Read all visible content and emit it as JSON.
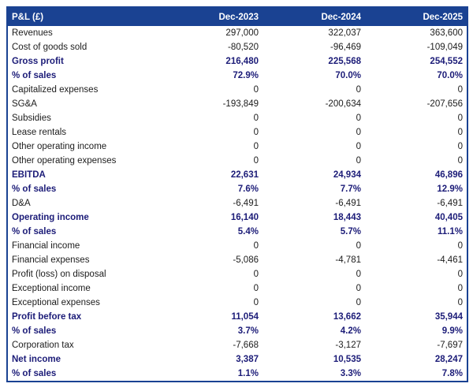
{
  "colors": {
    "header_bg": "#1a4292",
    "border": "#1a4292",
    "emphasis_text": "#1c1c78",
    "normal_text": "#1c1c1c",
    "row_bg": "#ffffff"
  },
  "table": {
    "title": "P&L (£)",
    "columns": [
      "Dec-2023",
      "Dec-2024",
      "Dec-2025"
    ],
    "rows": [
      {
        "label": "Revenues",
        "values": [
          "297,000",
          "322,037",
          "363,600"
        ],
        "emphasis": false
      },
      {
        "label": "Cost of goods sold",
        "values": [
          "-80,520",
          "-96,469",
          "-109,049"
        ],
        "emphasis": false
      },
      {
        "label": "Gross profit",
        "values": [
          "216,480",
          "225,568",
          "254,552"
        ],
        "emphasis": true
      },
      {
        "label": "% of sales",
        "values": [
          "72.9%",
          "70.0%",
          "70.0%"
        ],
        "emphasis": true
      },
      {
        "label": "Capitalized expenses",
        "values": [
          "0",
          "0",
          "0"
        ],
        "emphasis": false
      },
      {
        "label": "SG&A",
        "values": [
          "-193,849",
          "-200,634",
          "-207,656"
        ],
        "emphasis": false
      },
      {
        "label": "Subsidies",
        "values": [
          "0",
          "0",
          "0"
        ],
        "emphasis": false
      },
      {
        "label": "Lease rentals",
        "values": [
          "0",
          "0",
          "0"
        ],
        "emphasis": false
      },
      {
        "label": "Other operating income",
        "values": [
          "0",
          "0",
          "0"
        ],
        "emphasis": false
      },
      {
        "label": "Other operating expenses",
        "values": [
          "0",
          "0",
          "0"
        ],
        "emphasis": false
      },
      {
        "label": "EBITDA",
        "values": [
          "22,631",
          "24,934",
          "46,896"
        ],
        "emphasis": true
      },
      {
        "label": "% of sales",
        "values": [
          "7.6%",
          "7.7%",
          "12.9%"
        ],
        "emphasis": true
      },
      {
        "label": "D&A",
        "values": [
          "-6,491",
          "-6,491",
          "-6,491"
        ],
        "emphasis": false
      },
      {
        "label": "Operating income",
        "values": [
          "16,140",
          "18,443",
          "40,405"
        ],
        "emphasis": true
      },
      {
        "label": "% of sales",
        "values": [
          "5.4%",
          "5.7%",
          "11.1%"
        ],
        "emphasis": true
      },
      {
        "label": "Financial income",
        "values": [
          "0",
          "0",
          "0"
        ],
        "emphasis": false
      },
      {
        "label": "Financial expenses",
        "values": [
          "-5,086",
          "-4,781",
          "-4,461"
        ],
        "emphasis": false
      },
      {
        "label": "Profit (loss) on disposal",
        "values": [
          "0",
          "0",
          "0"
        ],
        "emphasis": false
      },
      {
        "label": "Exceptional income",
        "values": [
          "0",
          "0",
          "0"
        ],
        "emphasis": false
      },
      {
        "label": "Exceptional expenses",
        "values": [
          "0",
          "0",
          "0"
        ],
        "emphasis": false
      },
      {
        "label": "Profit before tax",
        "values": [
          "11,054",
          "13,662",
          "35,944"
        ],
        "emphasis": true
      },
      {
        "label": "% of sales",
        "values": [
          "3.7%",
          "4.2%",
          "9.9%"
        ],
        "emphasis": true
      },
      {
        "label": "Corporation tax",
        "values": [
          "-7,668",
          "-3,127",
          "-7,697"
        ],
        "emphasis": false
      },
      {
        "label": "Net income",
        "values": [
          "3,387",
          "10,535",
          "28,247"
        ],
        "emphasis": true
      },
      {
        "label": "% of sales",
        "values": [
          "1.1%",
          "3.3%",
          "7.8%"
        ],
        "emphasis": true
      }
    ]
  },
  "chart_data": {
    "type": "table",
    "title": "P&L (£)",
    "columns": [
      "P&L (£)",
      "Dec-2023",
      "Dec-2024",
      "Dec-2025"
    ],
    "rows": [
      [
        "Revenues",
        297000,
        322037,
        363600
      ],
      [
        "Cost of goods sold",
        -80520,
        -96469,
        -109049
      ],
      [
        "Gross profit",
        216480,
        225568,
        254552
      ],
      [
        "% of sales",
        "72.9%",
        "70.0%",
        "70.0%"
      ],
      [
        "Capitalized expenses",
        0,
        0,
        0
      ],
      [
        "SG&A",
        -193849,
        -200634,
        -207656
      ],
      [
        "Subsidies",
        0,
        0,
        0
      ],
      [
        "Lease rentals",
        0,
        0,
        0
      ],
      [
        "Other operating income",
        0,
        0,
        0
      ],
      [
        "Other operating expenses",
        0,
        0,
        0
      ],
      [
        "EBITDA",
        22631,
        24934,
        46896
      ],
      [
        "% of sales",
        "7.6%",
        "7.7%",
        "12.9%"
      ],
      [
        "D&A",
        -6491,
        -6491,
        -6491
      ],
      [
        "Operating income",
        16140,
        18443,
        40405
      ],
      [
        "% of sales",
        "5.4%",
        "5.7%",
        "11.1%"
      ],
      [
        "Financial income",
        0,
        0,
        0
      ],
      [
        "Financial expenses",
        -5086,
        -4781,
        -4461
      ],
      [
        "Profit (loss) on disposal",
        0,
        0,
        0
      ],
      [
        "Exceptional income",
        0,
        0,
        0
      ],
      [
        "Exceptional expenses",
        0,
        0,
        0
      ],
      [
        "Profit before tax",
        11054,
        13662,
        35944
      ],
      [
        "% of sales",
        "3.7%",
        "4.2%",
        "9.9%"
      ],
      [
        "Corporation tax",
        -7668,
        -3127,
        -7697
      ],
      [
        "Net income",
        3387,
        10535,
        28247
      ],
      [
        "% of sales",
        "1.1%",
        "3.3%",
        "7.8%"
      ]
    ]
  }
}
